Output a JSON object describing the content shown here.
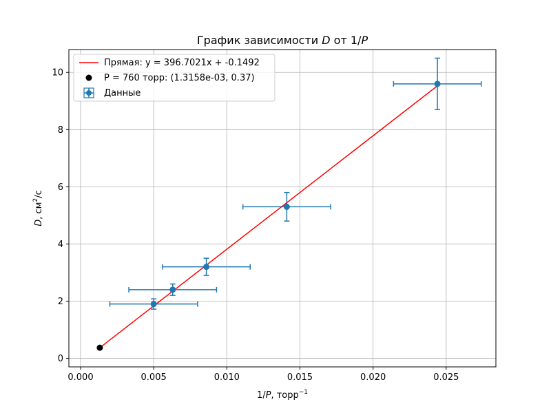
{
  "chart_data": {
    "type": "scatter",
    "title": "График зависимости D от 1/P",
    "title_parts": [
      "График зависимости ",
      "D",
      " от 1/",
      "P"
    ],
    "xlabel": "1/P, торр⁻¹",
    "xlabel_parts": [
      "1/",
      "P",
      ", торр",
      "−1"
    ],
    "ylabel": "D, см²/с",
    "ylabel_parts": [
      "D",
      ", см",
      "2",
      "/с"
    ],
    "xlim": [
      -0.0008,
      0.0284
    ],
    "ylim": [
      -0.3,
      10.8
    ],
    "xticks": [
      0.0,
      0.005,
      0.01,
      0.015,
      0.02,
      0.025
    ],
    "xtick_labels": [
      "0.000",
      "0.005",
      "0.010",
      "0.015",
      "0.020",
      "0.025"
    ],
    "yticks": [
      0,
      2,
      4,
      6,
      8,
      10
    ],
    "ytick_labels": [
      "0",
      "2",
      "4",
      "6",
      "8",
      "10"
    ],
    "grid": true,
    "legend_position": "top-left",
    "colors": {
      "data": "#1f77b4",
      "fit": "#ff0000",
      "point": "#000000"
    },
    "series": [
      {
        "name": "Прямая: y = 396.7021x + -0.1492",
        "kind": "line",
        "x": [
          0.0013158,
          0.0244
        ],
        "y": [
          0.37,
          9.53
        ]
      },
      {
        "name": "P = 760 торр: (1.3158e-03, 0.37)",
        "kind": "point",
        "x": [
          0.0013158
        ],
        "y": [
          0.37
        ]
      },
      {
        "name": "Данные",
        "kind": "errorbar",
        "x": [
          0.005,
          0.0063,
          0.0086,
          0.0141,
          0.0244
        ],
        "y": [
          1.9,
          2.4,
          3.2,
          5.3,
          9.6
        ],
        "xerr": [
          0.003,
          0.003,
          0.003,
          0.003,
          0.003
        ],
        "yerr": [
          0.18,
          0.2,
          0.3,
          0.5,
          0.9
        ]
      }
    ]
  }
}
